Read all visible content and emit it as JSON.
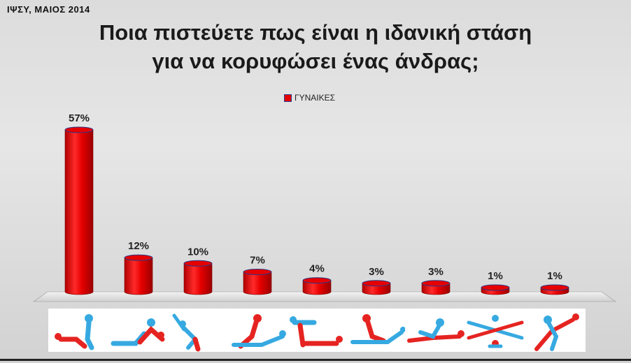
{
  "header": {
    "source": "ΙΨΣΥ, ΜΑΙΟΣ 2014"
  },
  "colors": {
    "bar": "#e60000",
    "bar_dark": "#a80000",
    "bar_edge": "#2a3a8a",
    "icon_red": "#e52421",
    "icon_blue": "#36a9e1"
  },
  "chart_data": {
    "type": "bar",
    "title": "Ποια πιστεύετε πως είναι η ιδανική στάση για να κορυφώσει ένας άνδρας;",
    "title_lines": [
      "Ποια πιστεύετε πως είναι η ιδανική στάση",
      "για να κορυφώσει ένας άνδρας;"
    ],
    "series": [
      {
        "name": "ΓΥΝΑΙΚΕΣ",
        "values": [
          57,
          12,
          10,
          7,
          4,
          3,
          3,
          1,
          1
        ]
      }
    ],
    "data_labels": [
      "57%",
      "12%",
      "10%",
      "7%",
      "4%",
      "3%",
      "3%",
      "1%",
      "1%"
    ],
    "category_icons": [
      "position-icon-1",
      "position-icon-2",
      "position-icon-3",
      "position-icon-4",
      "position-icon-5",
      "position-icon-6",
      "position-icon-7",
      "position-icon-8",
      "position-icon-9"
    ],
    "ylim": [
      0,
      60
    ],
    "grid": false,
    "legend_position": "top-center",
    "bar_shape": "cylinder"
  }
}
